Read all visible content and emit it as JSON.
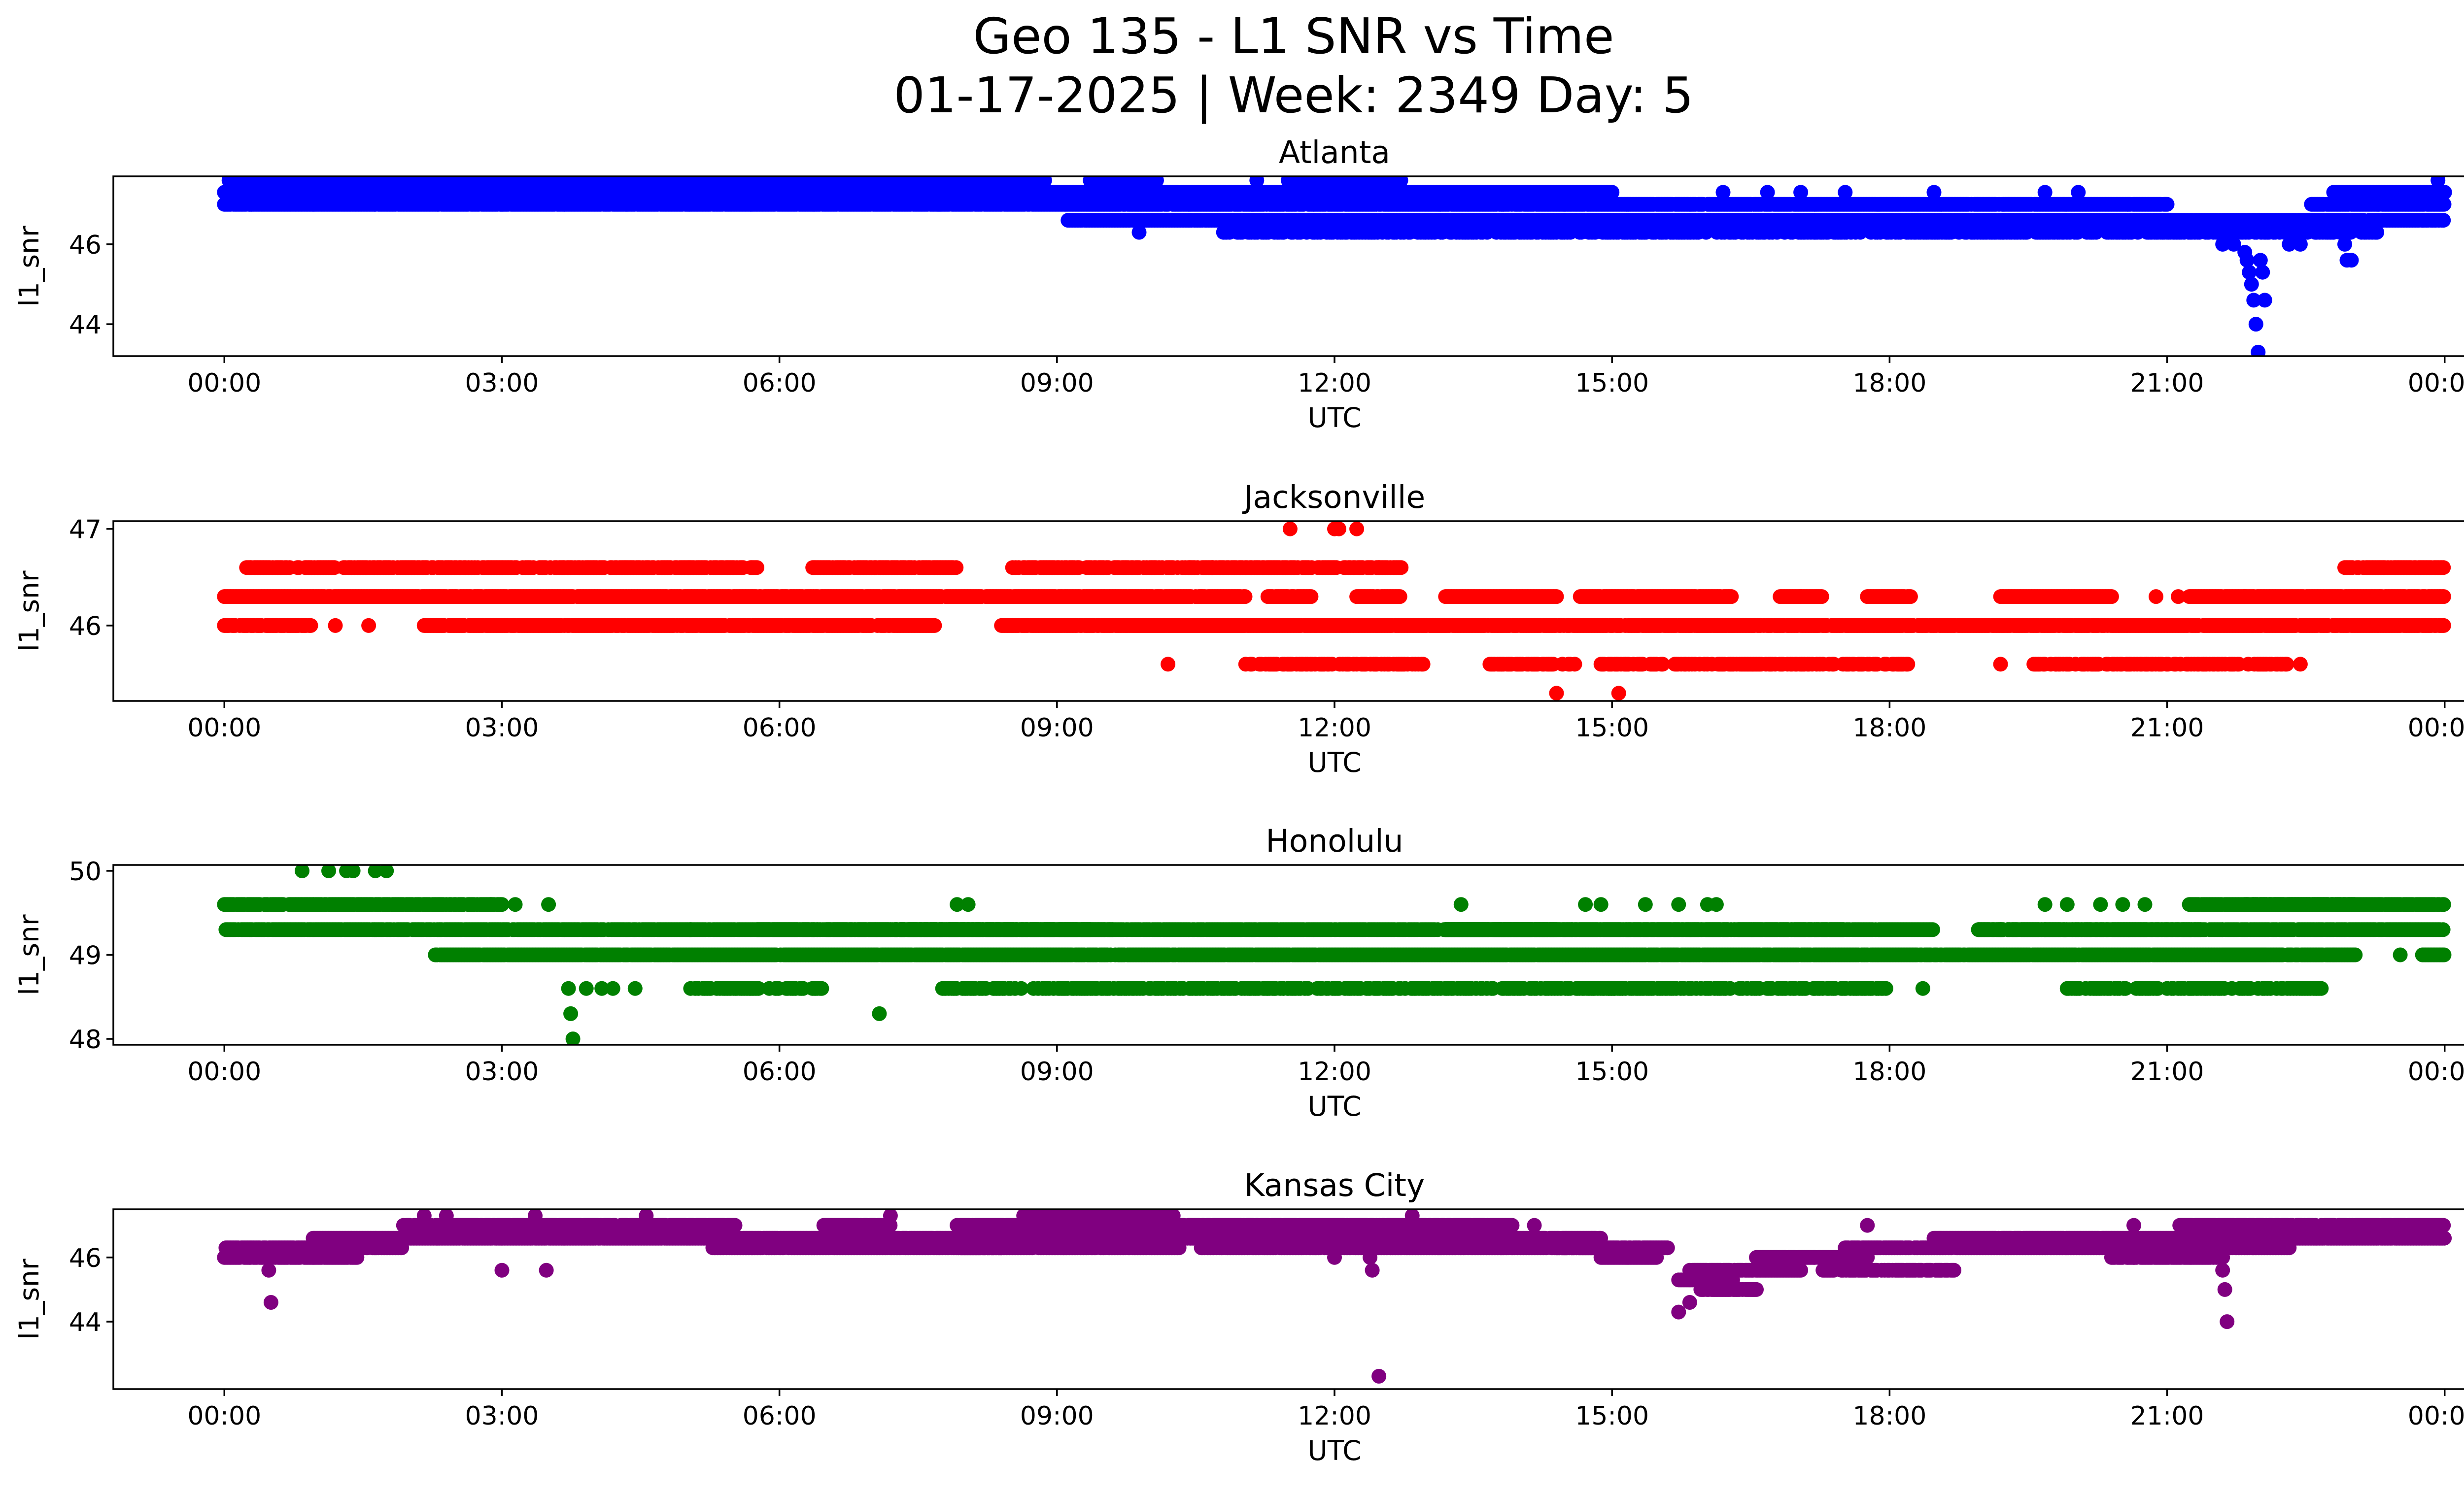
{
  "figure": {
    "title_line1": "Geo 135 - L1 SNR vs Time",
    "title_line2": "01-17-2025 | Week: 2349 Day: 5"
  },
  "chart_data": [
    {
      "type": "scatter",
      "title": "Atlanta",
      "xlabel": "UTC",
      "ylabel": "l1_snr",
      "color": "#0000ff",
      "xlim": [
        -0.05,
        1.05
      ],
      "ylim": [
        43.2,
        47.7
      ],
      "x_unit": "days since 2025-01-17 00:00 UTC",
      "x_ticks": [
        0,
        0.125,
        0.25,
        0.375,
        0.5,
        0.625,
        0.75,
        0.875,
        1.0
      ],
      "x_tick_labels": [
        "00:00",
        "03:00",
        "06:00",
        "09:00",
        "12:00",
        "15:00",
        "18:00",
        "21:00",
        "00:00"
      ],
      "y_ticks": [
        44,
        46
      ],
      "y_tick_labels": [
        "44",
        "46"
      ],
      "levels": [
        47.6,
        47.3,
        47.0,
        46.6,
        46.3,
        46.0,
        45.6,
        45.3,
        45.0,
        44.6,
        44.0,
        43.3
      ],
      "bands": [
        {
          "y": 47.3,
          "segments": [
            [
              0.0,
              0.625
            ],
            [
              0.95,
              1.0
            ]
          ],
          "density": 0.95
        },
        {
          "y": 47.0,
          "segments": [
            [
              0.0,
              0.875
            ],
            [
              0.94,
              1.0
            ]
          ],
          "density": 0.95
        },
        {
          "y": 47.6,
          "segments": [
            [
              0.0,
              0.37
            ],
            [
              0.39,
              0.42
            ],
            [
              0.475,
              0.53
            ]
          ],
          "density": 0.55
        },
        {
          "y": 46.6,
          "segments": [
            [
              0.38,
              1.0
            ]
          ],
          "density": 0.9
        },
        {
          "y": 46.3,
          "segments": [
            [
              0.45,
              0.97
            ]
          ],
          "density": 0.55
        }
      ],
      "points": [
        [
          0.04,
          47.6
        ],
        [
          0.06,
          47.6
        ],
        [
          0.095,
          47.6
        ],
        [
          0.11,
          47.6
        ],
        [
          0.13,
          47.6
        ],
        [
          0.15,
          47.6
        ],
        [
          0.22,
          47.6
        ],
        [
          0.243,
          47.6
        ],
        [
          0.28,
          47.6
        ],
        [
          0.3,
          47.6
        ],
        [
          0.39,
          47.6
        ],
        [
          0.412,
          46.3
        ],
        [
          0.413,
          46.6
        ],
        [
          0.465,
          47.6
        ],
        [
          0.675,
          47.3
        ],
        [
          0.695,
          47.3
        ],
        [
          0.71,
          47.3
        ],
        [
          0.73,
          47.3
        ],
        [
          0.77,
          47.3
        ],
        [
          0.82,
          47.3
        ],
        [
          0.835,
          47.3
        ],
        [
          0.9,
          46.0
        ],
        [
          0.905,
          46.0
        ],
        [
          0.91,
          45.8
        ],
        [
          0.911,
          45.6
        ],
        [
          0.912,
          45.3
        ],
        [
          0.913,
          45.0
        ],
        [
          0.914,
          44.6
        ],
        [
          0.915,
          44.0
        ],
        [
          0.916,
          43.3
        ],
        [
          0.917,
          45.6
        ],
        [
          0.918,
          45.3
        ],
        [
          0.919,
          44.6
        ],
        [
          0.93,
          46.0
        ],
        [
          0.935,
          46.0
        ],
        [
          0.955,
          46.0
        ],
        [
          0.956,
          45.6
        ],
        [
          0.958,
          45.6
        ],
        [
          0.99,
          46.6
        ],
        [
          0.997,
          47.6
        ],
        [
          0.998,
          47.3
        ]
      ]
    },
    {
      "type": "scatter",
      "title": "Jacksonville",
      "xlabel": "UTC",
      "ylabel": "l1_snr",
      "color": "#ff0000",
      "xlim": [
        -0.05,
        1.05
      ],
      "ylim": [
        45.22,
        47.08
      ],
      "x_unit": "days since 2025-01-17 00:00 UTC",
      "x_ticks": [
        0,
        0.125,
        0.25,
        0.375,
        0.5,
        0.625,
        0.75,
        0.875,
        1.0
      ],
      "x_tick_labels": [
        "00:00",
        "03:00",
        "06:00",
        "09:00",
        "12:00",
        "15:00",
        "18:00",
        "21:00",
        "00:00"
      ],
      "y_ticks": [
        46,
        47
      ],
      "y_tick_labels": [
        "46",
        "47"
      ],
      "levels": [
        47.0,
        46.6,
        46.3,
        46.0,
        45.6,
        45.3
      ],
      "bands": [
        {
          "y": 46.3,
          "segments": [
            [
              0.0,
              0.46
            ],
            [
              0.47,
              0.49
            ],
            [
              0.51,
              0.53
            ],
            [
              0.55,
              0.6
            ],
            [
              0.61,
              0.68
            ],
            [
              0.7,
              0.72
            ],
            [
              0.74,
              0.76
            ],
            [
              0.8,
              0.85
            ],
            [
              0.885,
              1.0
            ]
          ],
          "density": 0.95
        },
        {
          "y": 46.0,
          "segments": [
            [
              0.0,
              0.04
            ],
            [
              0.09,
              0.32
            ],
            [
              0.35,
              0.46
            ],
            [
              0.41,
              0.55
            ],
            [
              0.54,
              0.68
            ],
            [
              0.66,
              1.0
            ]
          ],
          "density": 0.9
        },
        {
          "y": 46.6,
          "segments": [
            [
              0.01,
              0.24
            ],
            [
              0.265,
              0.33
            ],
            [
              0.355,
              0.53
            ],
            [
              0.955,
              1.0
            ]
          ],
          "density": 0.75
        },
        {
          "y": 45.6,
          "segments": [
            [
              0.46,
              0.54
            ],
            [
              0.57,
              0.61
            ],
            [
              0.62,
              0.76
            ],
            [
              0.815,
              0.93
            ]
          ],
          "density": 0.6
        }
      ],
      "points": [
        [
          0.05,
          46.0
        ],
        [
          0.065,
          46.0
        ],
        [
          0.355,
          46.0
        ],
        [
          0.425,
          45.6
        ],
        [
          0.44,
          46.3
        ],
        [
          0.48,
          47.0
        ],
        [
          0.5,
          47.0
        ],
        [
          0.502,
          47.0
        ],
        [
          0.51,
          47.0
        ],
        [
          0.47,
          46.3
        ],
        [
          0.52,
          46.6
        ],
        [
          0.445,
          46.6
        ],
        [
          0.6,
          45.3
        ],
        [
          0.628,
          45.3
        ],
        [
          0.71,
          46.3
        ],
        [
          0.8,
          45.6
        ],
        [
          0.825,
          45.6
        ],
        [
          0.87,
          46.3
        ],
        [
          0.91,
          46.3
        ],
        [
          0.935,
          45.6
        ],
        [
          0.88,
          46.3
        ]
      ]
    },
    {
      "type": "scatter",
      "title": "Honolulu",
      "xlabel": "UTC",
      "ylabel": "l1_snr",
      "color": "#008000",
      "xlim": [
        -0.05,
        1.05
      ],
      "ylim": [
        47.93,
        50.07
      ],
      "x_unit": "days since 2025-01-17 00:00 UTC",
      "x_ticks": [
        0,
        0.125,
        0.25,
        0.375,
        0.5,
        0.625,
        0.75,
        0.875,
        1.0
      ],
      "x_tick_labels": [
        "00:00",
        "03:00",
        "06:00",
        "09:00",
        "12:00",
        "15:00",
        "18:00",
        "21:00",
        "00:00"
      ],
      "y_ticks": [
        48,
        49,
        50
      ],
      "y_tick_labels": [
        "48",
        "49",
        "50"
      ],
      "levels": [
        50.0,
        49.6,
        49.3,
        49.0,
        48.6,
        48.3,
        48.0
      ],
      "bands": [
        {
          "y": 49.3,
          "segments": [
            [
              0.0,
              0.4
            ],
            [
              0.39,
              0.24
            ],
            [
              0.3,
              0.4
            ],
            [
              0.4,
              0.6
            ],
            [
              0.55,
              0.6
            ],
            [
              0.56,
              0.55
            ],
            [
              0.56,
              0.73
            ],
            [
              0.55,
              0.77
            ],
            [
              0.79,
              0.89
            ],
            [
              0.79,
              0.9
            ],
            [
              0.9,
              1.0
            ]
          ],
          "density": 0.9
        },
        {
          "y": 49.6,
          "segments": [
            [
              0.0,
              0.125
            ],
            [
              0.885,
              0.96
            ],
            [
              0.91,
              1.0
            ]
          ],
          "density": 0.9
        },
        {
          "y": 49.0,
          "segments": [
            [
              0.095,
              0.92
            ],
            [
              0.9,
              0.96
            ],
            [
              0.99,
              1.0
            ]
          ],
          "density": 0.95
        },
        {
          "y": 48.6,
          "segments": [
            [
              0.21,
              0.27
            ],
            [
              0.32,
              0.48
            ],
            [
              0.47,
              0.63
            ],
            [
              0.615,
              0.75
            ],
            [
              0.83,
              0.85
            ],
            [
              0.85,
              0.945
            ]
          ],
          "density": 0.55
        }
      ],
      "points": [
        [
          0.035,
          50.0
        ],
        [
          0.047,
          50.0
        ],
        [
          0.055,
          50.0
        ],
        [
          0.058,
          50.0
        ],
        [
          0.068,
          50.0
        ],
        [
          0.073,
          50.0
        ],
        [
          0.12,
          49.6
        ],
        [
          0.131,
          49.6
        ],
        [
          0.146,
          49.6
        ],
        [
          0.155,
          48.6
        ],
        [
          0.156,
          48.3
        ],
        [
          0.157,
          48.0
        ],
        [
          0.163,
          48.6
        ],
        [
          0.17,
          48.6
        ],
        [
          0.175,
          48.6
        ],
        [
          0.185,
          48.6
        ],
        [
          0.21,
          49.3
        ],
        [
          0.295,
          48.3
        ],
        [
          0.305,
          49.3
        ],
        [
          0.33,
          49.6
        ],
        [
          0.335,
          49.6
        ],
        [
          0.54,
          48.6
        ],
        [
          0.557,
          49.6
        ],
        [
          0.605,
          48.6
        ],
        [
          0.607,
          49.3
        ],
        [
          0.613,
          49.6
        ],
        [
          0.62,
          49.6
        ],
        [
          0.64,
          49.6
        ],
        [
          0.655,
          49.6
        ],
        [
          0.668,
          49.6
        ],
        [
          0.672,
          49.6
        ],
        [
          0.7,
          48.6
        ],
        [
          0.745,
          48.6
        ],
        [
          0.765,
          48.6
        ],
        [
          0.8,
          49.3
        ],
        [
          0.82,
          49.3
        ],
        [
          0.82,
          49.6
        ],
        [
          0.83,
          49.6
        ],
        [
          0.845,
          49.6
        ],
        [
          0.855,
          49.6
        ],
        [
          0.865,
          49.6
        ],
        [
          0.875,
          48.6
        ],
        [
          0.88,
          48.6
        ],
        [
          0.95,
          49.0
        ],
        [
          0.98,
          49.0
        ]
      ]
    },
    {
      "type": "scatter",
      "title": "Kansas City",
      "xlabel": "UTC",
      "ylabel": "l1_snr",
      "color": "#800080",
      "xlim": [
        -0.05,
        1.05
      ],
      "ylim": [
        41.9,
        47.5
      ],
      "x_unit": "days since 2025-01-17 00:00 UTC",
      "x_ticks": [
        0,
        0.125,
        0.25,
        0.375,
        0.5,
        0.625,
        0.75,
        0.875,
        1.0
      ],
      "x_tick_labels": [
        "00:00",
        "03:00",
        "06:00",
        "09:00",
        "12:00",
        "15:00",
        "18:00",
        "21:00",
        "00:00"
      ],
      "y_ticks": [
        44,
        46
      ],
      "y_tick_labels": [
        "44",
        "46"
      ],
      "levels": [
        47.3,
        47.0,
        46.6,
        46.3,
        46.0,
        45.6,
        45.3,
        45.0,
        44.6,
        44.3,
        44.0,
        42.3
      ],
      "bands": [
        {
          "y": 46.3,
          "segments": [
            [
              0.0,
              0.08
            ],
            [
              0.22,
              0.35
            ],
            [
              0.33,
              0.43
            ],
            [
              0.44,
              0.62
            ],
            [
              0.6,
              0.65
            ],
            [
              0.73,
              0.93
            ]
          ],
          "density": 0.9
        },
        {
          "y": 46.0,
          "segments": [
            [
              0.0,
              0.06
            ],
            [
              0.62,
              0.645
            ],
            [
              0.85,
              0.9
            ]
          ],
          "density": 0.9
        },
        {
          "y": 46.6,
          "segments": [
            [
              0.04,
              0.62
            ],
            [
              0.77,
              1.0
            ]
          ],
          "density": 0.95
        },
        {
          "y": 47.0,
          "segments": [
            [
              0.08,
              0.23
            ],
            [
              0.27,
              0.3
            ],
            [
              0.33,
              0.58
            ],
            [
              0.88,
              1.0
            ]
          ],
          "density": 0.85
        },
        {
          "y": 47.3,
          "segments": [
            [
              0.36,
              0.43
            ]
          ],
          "density": 0.6
        },
        {
          "y": 45.6,
          "segments": [
            [
              0.66,
              0.71
            ]
          ],
          "density": 0.85
        },
        {
          "y": 45.3,
          "segments": [
            [
              0.655,
              0.68
            ]
          ],
          "density": 0.8
        },
        {
          "y": 45.0,
          "segments": [
            [
              0.665,
              0.69
            ]
          ],
          "density": 0.8
        },
        {
          "y": 45.6,
          "segments": [
            [
              0.72,
              0.78
            ]
          ],
          "density": 0.8
        },
        {
          "y": 46.0,
          "segments": [
            [
              0.69,
              0.74
            ]
          ],
          "density": 0.9
        }
      ],
      "points": [
        [
          0.02,
          45.6
        ],
        [
          0.021,
          44.6
        ],
        [
          0.09,
          47.3
        ],
        [
          0.1,
          47.3
        ],
        [
          0.125,
          45.6
        ],
        [
          0.145,
          45.6
        ],
        [
          0.14,
          47.3
        ],
        [
          0.19,
          47.3
        ],
        [
          0.3,
          47.3
        ],
        [
          0.35,
          47.0
        ],
        [
          0.36,
          47.0
        ],
        [
          0.44,
          46.6
        ],
        [
          0.5,
          46.0
        ],
        [
          0.515,
          46.3
        ],
        [
          0.516,
          46.0
        ],
        [
          0.517,
          45.6
        ],
        [
          0.52,
          42.3
        ],
        [
          0.535,
          47.3
        ],
        [
          0.525,
          46.3
        ],
        [
          0.58,
          47.0
        ],
        [
          0.59,
          47.0
        ],
        [
          0.655,
          44.3
        ],
        [
          0.66,
          44.6
        ],
        [
          0.74,
          47.0
        ],
        [
          0.86,
          47.0
        ],
        [
          0.9,
          45.6
        ],
        [
          0.901,
          45.0
        ],
        [
          0.902,
          44.0
        ],
        [
          0.91,
          46.6
        ],
        [
          0.86,
          46.0
        ]
      ]
    }
  ]
}
